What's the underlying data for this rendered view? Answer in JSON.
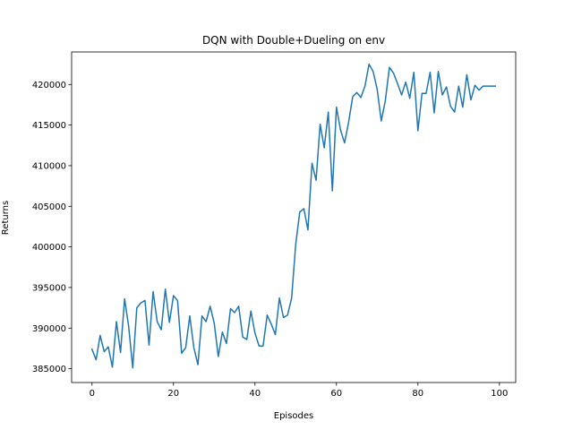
{
  "chart_data": {
    "type": "line",
    "title": "DQN with Double+Dueling on env",
    "xlabel": "Episodes",
    "ylabel": "Returns",
    "xlim": [
      -5,
      104
    ],
    "ylim": [
      383300,
      424000
    ],
    "xticks": [
      0,
      20,
      40,
      60,
      80,
      100
    ],
    "yticks": [
      385000,
      390000,
      395000,
      400000,
      405000,
      410000,
      415000,
      420000
    ],
    "line_color": "#1f77b4",
    "grid": false,
    "series": [
      {
        "x": [
          0,
          1,
          2,
          3,
          4,
          5,
          6,
          7,
          8,
          9,
          10,
          11,
          12,
          13,
          14,
          15,
          16,
          17,
          18,
          19,
          20,
          21,
          22,
          23,
          24,
          25,
          26,
          27,
          28,
          29,
          30,
          31,
          32,
          33,
          34,
          35,
          36,
          37,
          38,
          39,
          40,
          41,
          42,
          43,
          44,
          45,
          46,
          47,
          48,
          49,
          50,
          51,
          52,
          53,
          54,
          55,
          56,
          57,
          58,
          59,
          60,
          61,
          62,
          63,
          64,
          65,
          66,
          67,
          68,
          69,
          70,
          71,
          72,
          73,
          74,
          75,
          76,
          77,
          78,
          79,
          80,
          81,
          82,
          83,
          84,
          85,
          86,
          87,
          88,
          89,
          90,
          91,
          92,
          93,
          94,
          95,
          96,
          97,
          98,
          99
        ],
        "values": [
          387400,
          386100,
          389100,
          387100,
          387700,
          385200,
          390800,
          387000,
          393600,
          390200,
          385100,
          392500,
          393100,
          393400,
          387900,
          394500,
          390800,
          389800,
          394800,
          390700,
          394000,
          393400,
          386900,
          387600,
          391500,
          387600,
          385500,
          391500,
          390800,
          392700,
          390600,
          386500,
          389500,
          388100,
          392400,
          391900,
          392700,
          388900,
          388600,
          392100,
          389400,
          387800,
          387800,
          391600,
          390500,
          389200,
          393700,
          391300,
          391600,
          393700,
          400300,
          404300,
          404700,
          402100,
          410300,
          408200,
          415100,
          412200,
          416600,
          406900,
          417200,
          414400,
          412800,
          415400,
          418500,
          419000,
          418400,
          419800,
          422500,
          421600,
          419400,
          415500,
          418000,
          422100,
          421400,
          420100,
          418700,
          420300,
          418300,
          421500,
          414300,
          418900,
          418900,
          421500,
          416500,
          421600,
          418700,
          419700,
          417300,
          416600,
          419800,
          417200,
          421200,
          418100,
          419900,
          419300,
          419800,
          419800,
          419800,
          419800
        ]
      }
    ]
  }
}
